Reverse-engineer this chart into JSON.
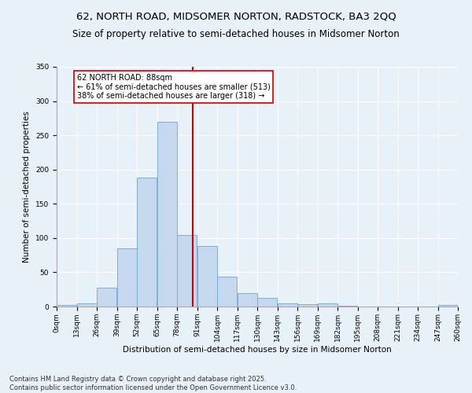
{
  "title": "62, NORTH ROAD, MIDSOMER NORTON, RADSTOCK, BA3 2QQ",
  "subtitle": "Size of property relative to semi-detached houses in Midsomer Norton",
  "xlabel": "Distribution of semi-detached houses by size in Midsomer Norton",
  "ylabel": "Number of semi-detached properties",
  "footnote": "Contains HM Land Registry data © Crown copyright and database right 2025.\nContains public sector information licensed under the Open Government Licence v3.0.",
  "bins": [
    0,
    13,
    26,
    39,
    52,
    65,
    78,
    91,
    104,
    117,
    130,
    143,
    156,
    169,
    182,
    195,
    208,
    221,
    234,
    247,
    260
  ],
  "bin_labels": [
    "0sqm",
    "13sqm",
    "26sqm",
    "39sqm",
    "52sqm",
    "65sqm",
    "78sqm",
    "91sqm",
    "104sqm",
    "117sqm",
    "130sqm",
    "143sqm",
    "156sqm",
    "169sqm",
    "182sqm",
    "195sqm",
    "208sqm",
    "221sqm",
    "234sqm",
    "247sqm",
    "260sqm"
  ],
  "values": [
    2,
    5,
    28,
    85,
    188,
    270,
    105,
    88,
    44,
    19,
    13,
    5,
    4,
    5,
    1,
    0,
    0,
    0,
    0,
    2
  ],
  "bar_color": "#c5d8ed",
  "bar_edge_color": "#7bafd4",
  "property_value": 88,
  "property_line_color": "#cc0000",
  "annotation_text": "62 NORTH ROAD: 88sqm\n← 61% of semi-detached houses are smaller (513)\n38% of semi-detached houses are larger (318) →",
  "annotation_box_color": "#ffffff",
  "annotation_box_edge_color": "#cc0000",
  "ylim": [
    0,
    350
  ],
  "yticks": [
    0,
    50,
    100,
    150,
    200,
    250,
    300,
    350
  ],
  "background_color": "#e8f0f8",
  "plot_background": "#e8f0f8",
  "title_fontsize": 9.5,
  "subtitle_fontsize": 8.5,
  "axis_label_fontsize": 7.5,
  "tick_fontsize": 6.5,
  "annotation_fontsize": 7,
  "footnote_fontsize": 6
}
